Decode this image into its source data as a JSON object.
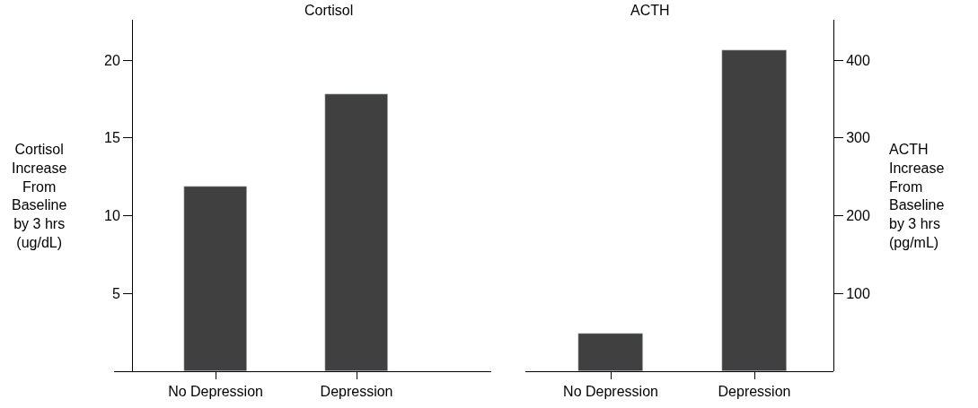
{
  "chart_data": [
    {
      "type": "bar",
      "title": "Cortisol",
      "ylabel": "Cortisol\nIncrease\nFrom\nBaseline\nby 3 hrs\n(ug/dL)",
      "categories": [
        "No Depression",
        "Depression"
      ],
      "values": [
        11.9,
        17.8
      ],
      "color": "#404040",
      "ylim": [
        0,
        22.6
      ],
      "yticks": [
        5,
        10,
        15,
        20
      ]
    },
    {
      "type": "bar",
      "title": "ACTH",
      "y2label": "ACTH\nIncrease\nFrom\nBaseline\nby 3 hrs\n(pg/mL)",
      "categories": [
        "No Depression",
        "Depression"
      ],
      "series": [
        {
          "values": [
            48,
            413
          ],
          "color": "#404040",
          "axis": "y2"
        }
      ],
      "y2lim": [
        0,
        452
      ],
      "y2ticks": [
        100,
        200,
        300,
        400
      ]
    }
  ]
}
